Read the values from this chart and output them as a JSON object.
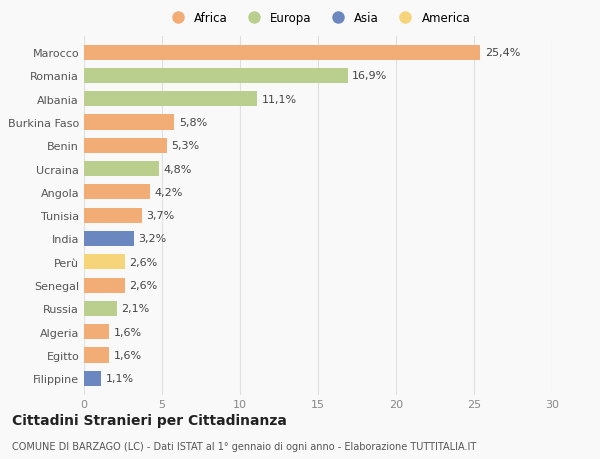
{
  "countries": [
    "Marocco",
    "Romania",
    "Albania",
    "Burkina Faso",
    "Benin",
    "Ucraina",
    "Angola",
    "Tunisia",
    "India",
    "Perù",
    "Senegal",
    "Russia",
    "Algeria",
    "Egitto",
    "Filippine"
  ],
  "values": [
    25.4,
    16.9,
    11.1,
    5.8,
    5.3,
    4.8,
    4.2,
    3.7,
    3.2,
    2.6,
    2.6,
    2.1,
    1.6,
    1.6,
    1.1
  ],
  "labels": [
    "25,4%",
    "16,9%",
    "11,1%",
    "5,8%",
    "5,3%",
    "4,8%",
    "4,2%",
    "3,7%",
    "3,2%",
    "2,6%",
    "2,6%",
    "2,1%",
    "1,6%",
    "1,6%",
    "1,1%"
  ],
  "continents": [
    "Africa",
    "Europa",
    "Europa",
    "Africa",
    "Africa",
    "Europa",
    "Africa",
    "Africa",
    "Asia",
    "America",
    "Africa",
    "Europa",
    "Africa",
    "Africa",
    "Asia"
  ],
  "continent_colors": {
    "Africa": "#F2AC76",
    "Europa": "#BACF8E",
    "Asia": "#6B87C0",
    "America": "#F5D47A"
  },
  "legend_order": [
    "Africa",
    "Europa",
    "Asia",
    "America"
  ],
  "xlim": [
    0,
    30
  ],
  "xticks": [
    0,
    5,
    10,
    15,
    20,
    25,
    30
  ],
  "title": "Cittadini Stranieri per Cittadinanza",
  "subtitle": "COMUNE DI BARZAGO (LC) - Dati ISTAT al 1° gennaio di ogni anno - Elaborazione TUTTITALIA.IT",
  "background_color": "#f9f9f9",
  "bar_height": 0.65,
  "label_fontsize": 8,
  "tick_fontsize": 8,
  "title_fontsize": 10,
  "subtitle_fontsize": 7,
  "grid_color": "#e0e0e0"
}
